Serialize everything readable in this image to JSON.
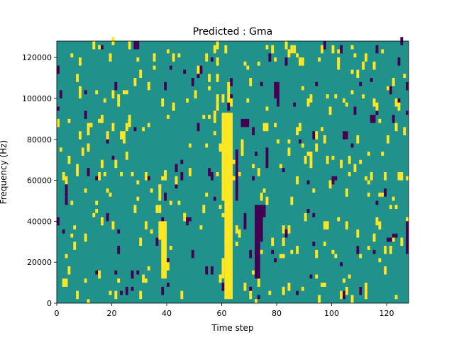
{
  "chart_data": {
    "type": "heatmap",
    "title": "Predicted : Gma",
    "xlabel": "Time step",
    "ylabel": "Frequency (Hz)",
    "xlim": [
      0,
      128
    ],
    "ylim": [
      0,
      128000
    ],
    "xticks": [
      0,
      20,
      40,
      60,
      80,
      100,
      120
    ],
    "yticks": [
      0,
      20000,
      40000,
      60000,
      80000,
      100000,
      120000
    ],
    "colors": {
      "background": "#21918c",
      "high": "#fde725",
      "low": "#440154"
    },
    "grid": false,
    "legend": "none",
    "blocks": [
      {
        "x0": 61,
        "x1": 64,
        "y0": 2000,
        "y1": 93000,
        "level": "high"
      },
      {
        "x0": 60,
        "x1": 62,
        "y0": 50000,
        "y1": 93000,
        "level": "high"
      },
      {
        "x0": 62,
        "x1": 63,
        "y0": 98000,
        "y1": 108000,
        "level": "high"
      },
      {
        "x0": 60,
        "x1": 61,
        "y0": 12000,
        "y1": 22000,
        "level": "high"
      },
      {
        "x0": 38,
        "x1": 40,
        "y0": 12000,
        "y1": 32000,
        "level": "high"
      },
      {
        "x0": 37,
        "x1": 40,
        "y0": 31000,
        "y1": 40000,
        "level": "high"
      },
      {
        "x0": 37,
        "x1": 38,
        "y0": 50000,
        "y1": 58000,
        "level": "high"
      },
      {
        "x0": 39,
        "x1": 40,
        "y0": 60000,
        "y1": 65000,
        "level": "high"
      },
      {
        "x0": 55,
        "x1": 56,
        "y0": 108000,
        "y1": 112000,
        "level": "high"
      },
      {
        "x0": 58,
        "x1": 59,
        "y0": 108000,
        "y1": 112000,
        "level": "high"
      },
      {
        "x0": 72,
        "x1": 74,
        "y0": 12000,
        "y1": 30000,
        "level": "low"
      },
      {
        "x0": 72,
        "x1": 75,
        "y0": 30000,
        "y1": 48000,
        "level": "low"
      },
      {
        "x0": 74,
        "x1": 76,
        "y0": 42000,
        "y1": 48000,
        "level": "low"
      },
      {
        "x0": 67,
        "x1": 70,
        "y0": 86000,
        "y1": 90000,
        "level": "low"
      },
      {
        "x0": 65,
        "x1": 66,
        "y0": 50000,
        "y1": 75000,
        "level": "low"
      },
      {
        "x0": 68,
        "x1": 69,
        "y0": 36000,
        "y1": 44000,
        "level": "low"
      },
      {
        "x0": 76,
        "x1": 77,
        "y0": 66000,
        "y1": 76000,
        "level": "low"
      },
      {
        "x0": 79,
        "x1": 81,
        "y0": 100000,
        "y1": 108000,
        "level": "low"
      },
      {
        "x0": 104,
        "x1": 106,
        "y0": 80000,
        "y1": 84000,
        "level": "low"
      },
      {
        "x0": 114,
        "x1": 116,
        "y0": 88000,
        "y1": 92000,
        "level": "low"
      },
      {
        "x0": 120,
        "x1": 122,
        "y0": 30000,
        "y1": 32000,
        "level": "low"
      },
      {
        "x0": 122,
        "x1": 124,
        "y0": 32000,
        "y1": 34000,
        "level": "low"
      },
      {
        "x0": 127,
        "x1": 128,
        "y0": 24000,
        "y1": 40000,
        "level": "low"
      },
      {
        "x0": 2,
        "x1": 4,
        "y0": 8000,
        "y1": 12000,
        "level": "high"
      },
      {
        "x0": 124,
        "x1": 126,
        "y0": 60000,
        "y1": 64000,
        "level": "high"
      }
    ],
    "cell_mode": "scattered vertical cells (1 time step wide) at level high or low across full range"
  }
}
